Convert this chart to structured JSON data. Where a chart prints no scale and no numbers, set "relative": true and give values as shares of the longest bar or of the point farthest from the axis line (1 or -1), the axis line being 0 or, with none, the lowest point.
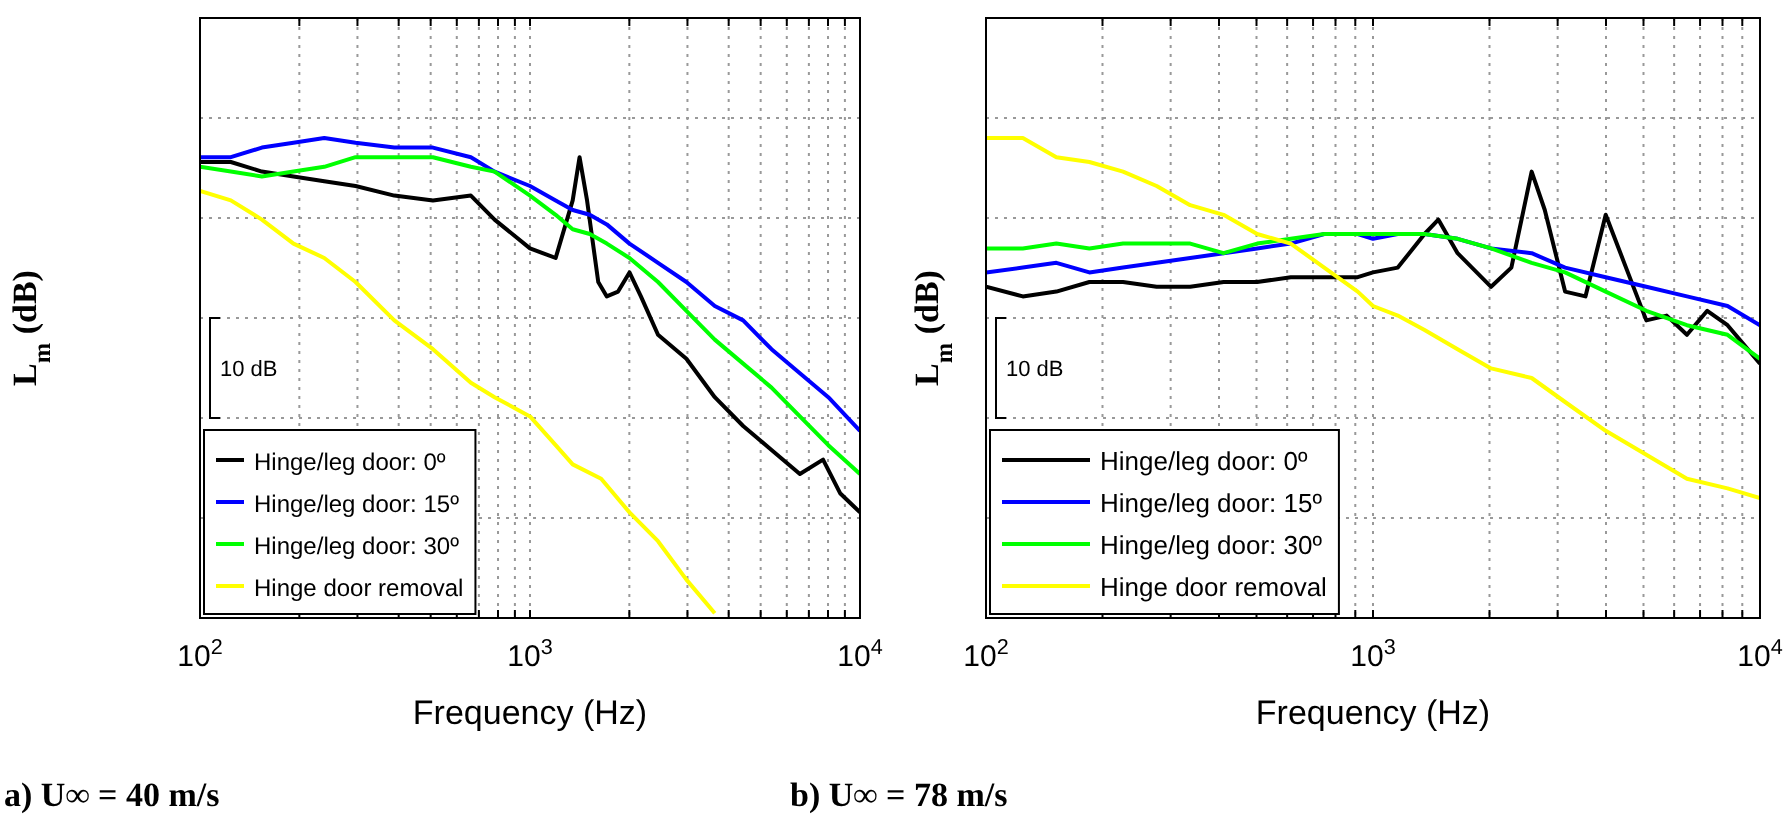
{
  "chart_data": [
    {
      "type": "line",
      "title": "a) U∞ = 40 m/s",
      "xlabel": "Frequency (Hz)",
      "ylabel": "L$_{m}$ (dB)",
      "relative": true,
      "log": "x",
      "grid": true,
      "legend": "bottom left",
      "line_style": "solid",
      "marker": "none",
      "annotations": [
        "10 dB"
      ],
      "xlim": [
        100,
        10000
      ],
      "xticks": [
        {
          "value": 100,
          "label": "10$^{2}$"
        },
        {
          "value": 200,
          "label": null
        },
        {
          "value": 300,
          "label": null
        },
        {
          "value": 400,
          "label": null
        },
        {
          "value": 500,
          "label": null
        },
        {
          "value": 600,
          "label": null
        },
        {
          "value": 700,
          "label": null
        },
        {
          "value": 800,
          "label": null
        },
        {
          "value": 900,
          "label": null
        },
        {
          "value": 1000,
          "label": "10$^{3}$"
        },
        {
          "value": 2000,
          "label": null
        },
        {
          "value": 3000,
          "label": null
        },
        {
          "value": 4000,
          "label": null
        },
        {
          "value": 5000,
          "label": null
        },
        {
          "value": 6000,
          "label": null
        },
        {
          "value": 7000,
          "label": null
        },
        {
          "value": 8000,
          "label": null
        },
        {
          "value": 9000,
          "label": null
        },
        {
          "value": 10000,
          "label": "10$^{4}$"
        }
      ],
      "series": [
        {
          "name": "Hinge/leg door: 0º",
          "color": "#000000",
          "x": [
            100,
            124,
            154,
            192,
            238,
            296,
            388,
            508,
            662,
            781,
            1000,
            1196,
            1347,
            1413,
            1489,
            1610,
            1709,
            1849,
            2002,
            2168,
            2443,
            2978,
            3630,
            4425,
            5394,
            6574,
            7727,
            8703,
            10000
          ],
          "values": [
            0.95,
            0.95,
            0.93,
            0.92,
            0.91,
            0.9,
            0.88,
            0.87,
            0.88,
            0.83,
            0.77,
            0.75,
            0.87,
            0.96,
            0.87,
            0.7,
            0.67,
            0.68,
            0.72,
            0.67,
            0.59,
            0.54,
            0.46,
            0.4,
            0.35,
            0.3,
            0.33,
            0.26,
            0.22
          ]
        },
        {
          "name": "Hinge/leg door: 15º",
          "color": "#0000ff",
          "x": [
            100,
            124,
            154,
            192,
            238,
            296,
            388,
            508,
            662,
            781,
            1000,
            1196,
            1347,
            1517,
            1709,
            2002,
            2443,
            2978,
            3630,
            4425,
            5394,
            6574,
            8016,
            10000
          ],
          "values": [
            0.96,
            0.96,
            0.98,
            0.99,
            1,
            0.99,
            0.98,
            0.98,
            0.96,
            0.93,
            0.9,
            0.87,
            0.85,
            0.84,
            0.82,
            0.78,
            0.74,
            0.7,
            0.65,
            0.62,
            0.56,
            0.51,
            0.46,
            0.39
          ]
        },
        {
          "name": "Hinge/leg door: 30º",
          "color": "#00ff00",
          "x": [
            100,
            124,
            154,
            192,
            238,
            296,
            388,
            508,
            662,
            781,
            1000,
            1196,
            1347,
            1517,
            1709,
            2002,
            2443,
            2978,
            3630,
            4425,
            5394,
            6574,
            8016,
            10000
          ],
          "values": [
            0.94,
            0.93,
            0.92,
            0.93,
            0.94,
            0.96,
            0.96,
            0.96,
            0.94,
            0.93,
            0.88,
            0.84,
            0.81,
            0.8,
            0.78,
            0.75,
            0.7,
            0.64,
            0.58,
            0.53,
            0.48,
            0.42,
            0.36,
            0.3
          ]
        },
        {
          "name": "Hinge door removal",
          "color": "#ffff00",
          "x": [
            100,
            124,
            154,
            192,
            238,
            296,
            388,
            508,
            662,
            781,
            1000,
            1196,
            1347,
            1643,
            2002,
            2443,
            2978,
            3630
          ],
          "values": [
            0.89,
            0.87,
            0.83,
            0.78,
            0.75,
            0.7,
            0.62,
            0.56,
            0.49,
            0.46,
            0.42,
            0.36,
            0.32,
            0.29,
            0.22,
            0.16,
            0.08,
            0.01
          ]
        }
      ]
    },
    {
      "type": "line",
      "title": "b) U∞ = 78 m/s",
      "xlabel": "Frequency (Hz)",
      "ylabel": "L$_{m}$ (dB)",
      "relative": true,
      "log": "x",
      "grid": true,
      "legend": "bottom left",
      "line_style": "solid",
      "marker": "none",
      "annotations": [
        "10 dB"
      ],
      "xlim": [
        100,
        10000
      ],
      "xticks": [
        {
          "value": 100,
          "label": "10$^{2}$"
        },
        {
          "value": 200,
          "label": null
        },
        {
          "value": 300,
          "label": null
        },
        {
          "value": 400,
          "label": null
        },
        {
          "value": 500,
          "label": null
        },
        {
          "value": 600,
          "label": null
        },
        {
          "value": 700,
          "label": null
        },
        {
          "value": 800,
          "label": null
        },
        {
          "value": 900,
          "label": null
        },
        {
          "value": 1000,
          "label": "10$^{3}$"
        },
        {
          "value": 2000,
          "label": null
        },
        {
          "value": 3000,
          "label": null
        },
        {
          "value": 4000,
          "label": null
        },
        {
          "value": 5000,
          "label": null
        },
        {
          "value": 6000,
          "label": null
        },
        {
          "value": 7000,
          "label": null
        },
        {
          "value": 8000,
          "label": null
        },
        {
          "value": 9000,
          "label": null
        },
        {
          "value": 10000,
          "label": "10$^{4}$"
        }
      ],
      "series": [
        {
          "name": "Hinge/leg door: 0º",
          "color": "#000000",
          "x": [
            100,
            124.5,
            152,
            185,
            226,
            276,
            337,
            411,
            502,
            613,
            748,
            913,
            1000,
            1159,
            1359,
            1475,
            1654,
            2019,
            2278,
            2570,
            2779,
            3136,
            3540,
            3993,
            4506,
            5085,
            5738,
            6474,
            7306,
            8244,
            10000
          ],
          "values": [
            0.69,
            0.67,
            0.68,
            0.7,
            0.7,
            0.69,
            0.69,
            0.7,
            0.7,
            0.71,
            0.71,
            0.71,
            0.72,
            0.73,
            0.8,
            0.83,
            0.76,
            0.69,
            0.73,
            0.93,
            0.85,
            0.68,
            0.67,
            0.84,
            0.73,
            0.62,
            0.63,
            0.59,
            0.64,
            0.61,
            0.53
          ]
        },
        {
          "name": "Hinge/leg door: 15º",
          "color": "#0000ff",
          "x": [
            100,
            124.5,
            152,
            185,
            226,
            276,
            337,
            411,
            502,
            613,
            748,
            913,
            1000,
            1159,
            1359,
            1654,
            2019,
            2570,
            3136,
            3993,
            5085,
            6474,
            8244,
            10000
          ],
          "values": [
            0.72,
            0.73,
            0.74,
            0.72,
            0.73,
            0.74,
            0.75,
            0.76,
            0.77,
            0.78,
            0.8,
            0.8,
            0.79,
            0.8,
            0.8,
            0.79,
            0.77,
            0.76,
            0.73,
            0.71,
            0.69,
            0.67,
            0.65,
            0.61
          ]
        },
        {
          "name": "Hinge/leg door: 30º",
          "color": "#00ff00",
          "x": [
            100,
            124.5,
            152,
            185,
            226,
            276,
            337,
            411,
            502,
            613,
            748,
            913,
            1000,
            1159,
            1359,
            1654,
            2019,
            2570,
            3136,
            3993,
            5085,
            6474,
            8244,
            10000
          ],
          "values": [
            0.77,
            0.77,
            0.78,
            0.77,
            0.78,
            0.78,
            0.78,
            0.76,
            0.78,
            0.79,
            0.8,
            0.8,
            0.8,
            0.8,
            0.8,
            0.79,
            0.77,
            0.74,
            0.72,
            0.68,
            0.64,
            0.61,
            0.59,
            0.54
          ]
        },
        {
          "name": "Hinge door removal",
          "color": "#ffff00",
          "x": [
            100,
            124.5,
            152,
            185,
            226,
            276,
            337,
            411,
            502,
            613,
            748,
            913,
            1000,
            1159,
            1359,
            1654,
            2019,
            2570,
            3136,
            3993,
            5085,
            6474,
            8244,
            10000
          ],
          "values": [
            1,
            1,
            0.96,
            0.95,
            0.93,
            0.9,
            0.86,
            0.84,
            0.8,
            0.78,
            0.73,
            0.68,
            0.65,
            0.63,
            0.6,
            0.56,
            0.52,
            0.5,
            0.45,
            0.39,
            0.34,
            0.29,
            0.27,
            0.25
          ]
        }
      ]
    }
  ]
}
